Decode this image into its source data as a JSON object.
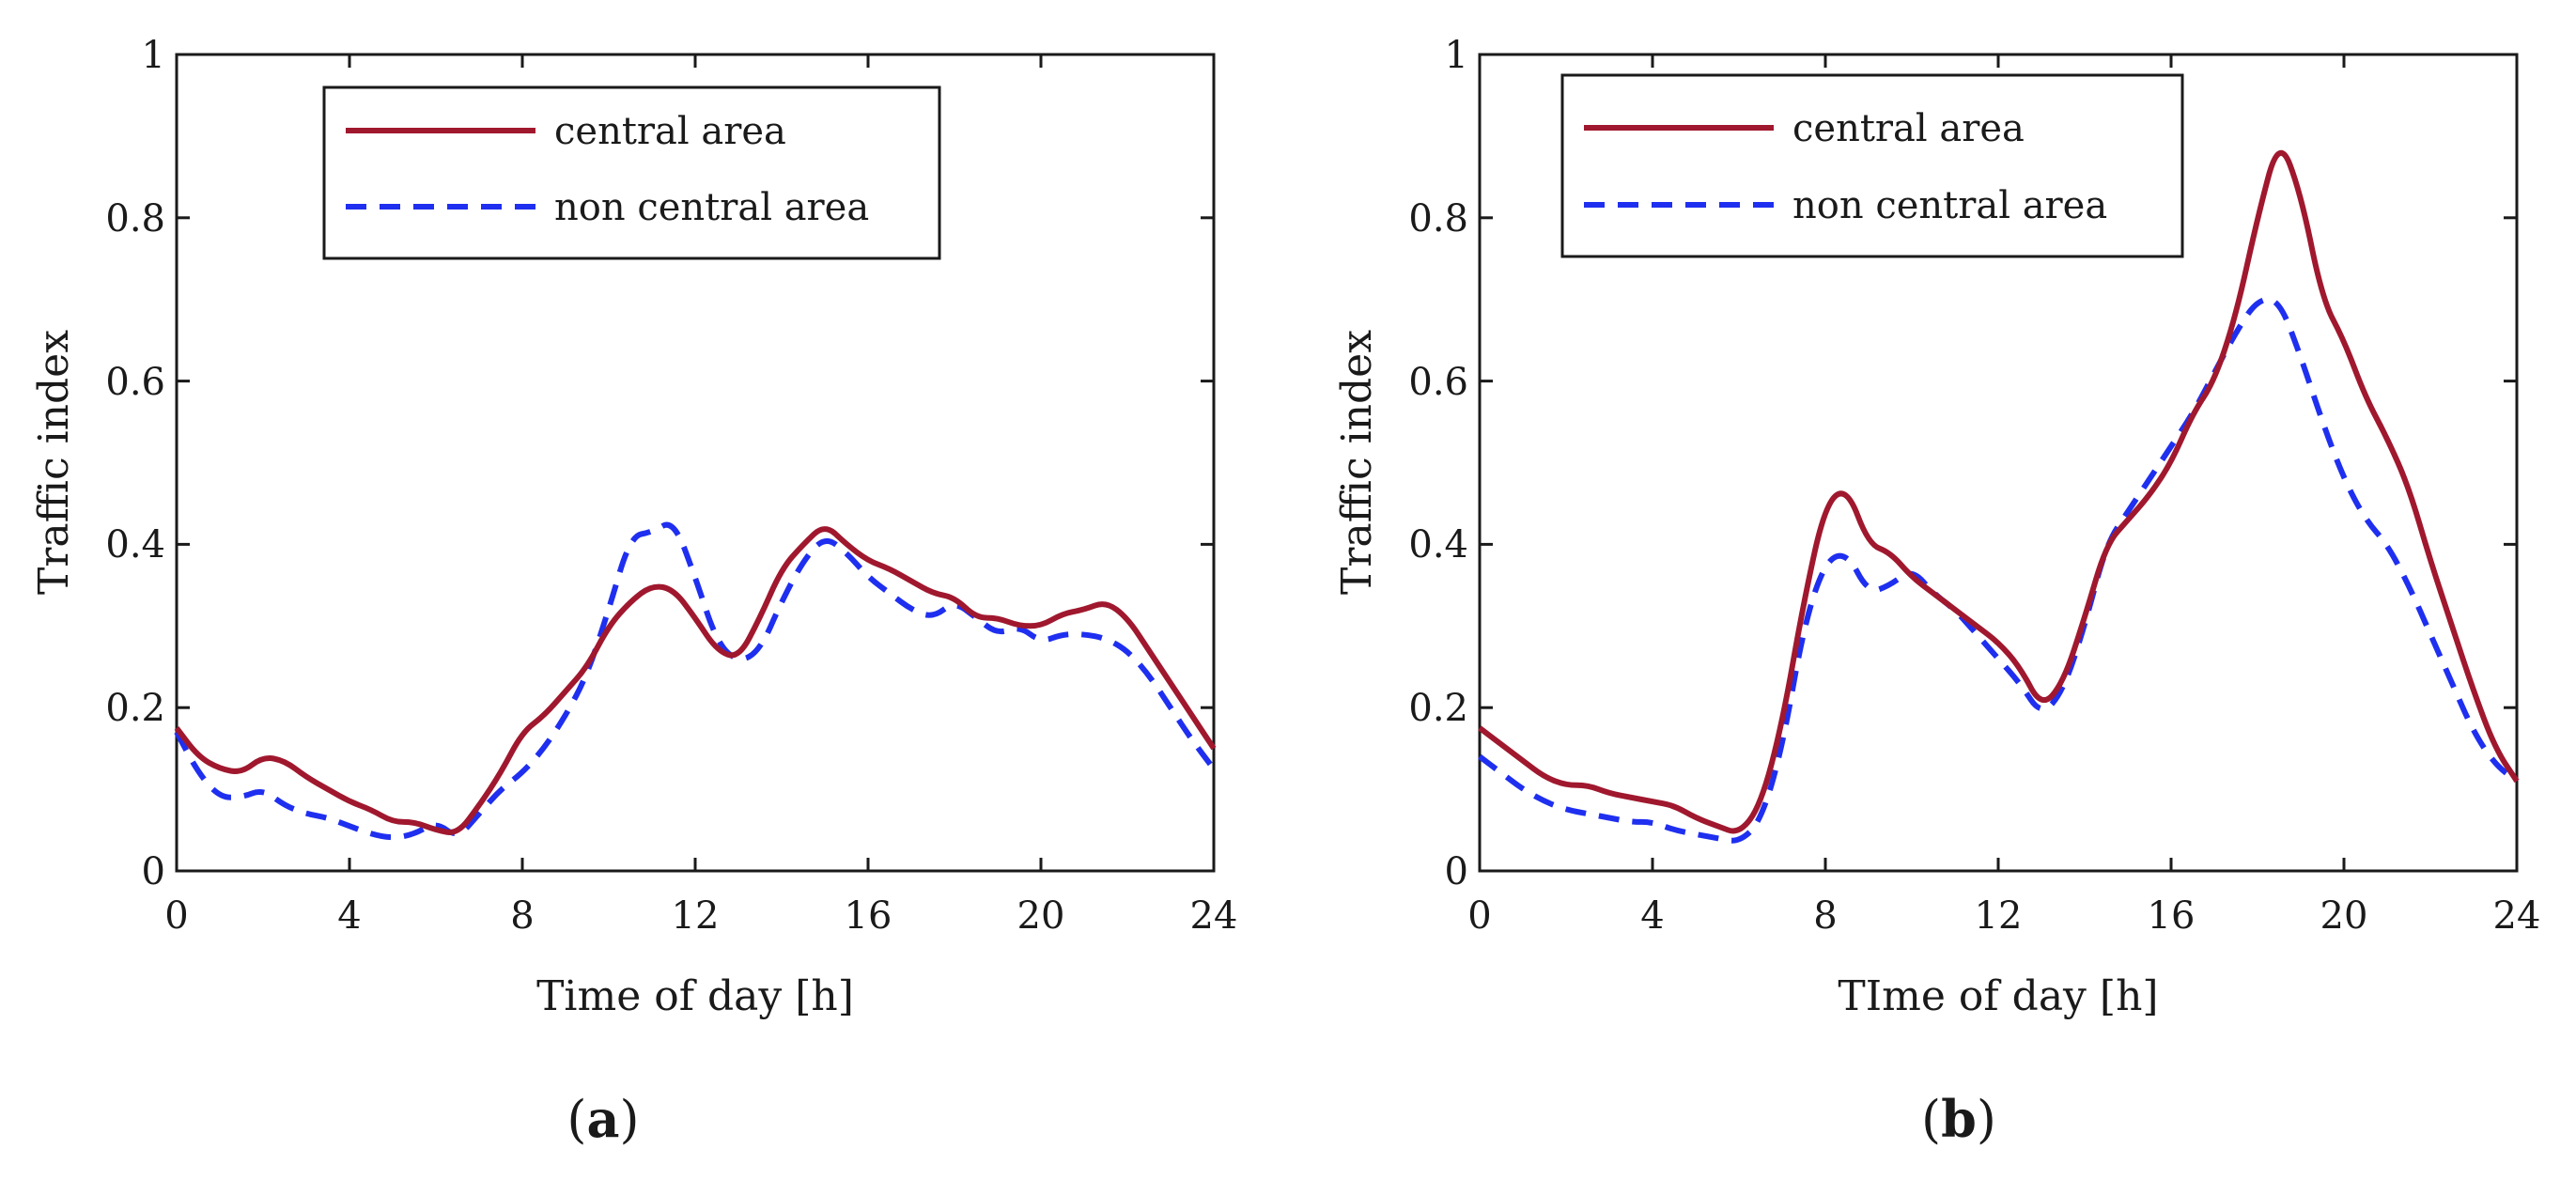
{
  "colors": {
    "central": "#a0182e",
    "non_central": "#1f2ff0",
    "axis": "#1a1a1a"
  },
  "chart_data": [
    {
      "type": "line",
      "panel_label": "a",
      "xlabel": "Time of day [h]",
      "ylabel": "Traffic index",
      "xlim": [
        0,
        24
      ],
      "ylim": [
        0,
        1
      ],
      "xticks": [
        "0",
        "4",
        "8",
        "12",
        "16",
        "20",
        "24"
      ],
      "yticks": [
        "0",
        "0.2",
        "0.4",
        "0.6",
        "0.8",
        "1"
      ],
      "legend_position": "top-center",
      "series": [
        {
          "name": "central area",
          "style": "solid",
          "x": [
            0,
            0.5,
            1,
            1.5,
            2,
            2.5,
            3,
            3.5,
            4,
            4.5,
            5,
            5.5,
            6,
            6.5,
            7,
            7.5,
            8,
            8.5,
            9,
            9.5,
            10,
            10.5,
            11,
            11.5,
            12,
            12.5,
            13,
            13.5,
            14,
            14.5,
            15,
            15.5,
            16,
            16.5,
            17,
            17.5,
            18,
            18.5,
            19,
            19.5,
            20,
            20.5,
            21,
            21.5,
            22,
            22.5,
            23,
            23.5,
            24
          ],
          "values": [
            0.175,
            0.14,
            0.125,
            0.12,
            0.14,
            0.135,
            0.115,
            0.1,
            0.085,
            0.075,
            0.06,
            0.06,
            0.05,
            0.045,
            0.08,
            0.12,
            0.17,
            0.19,
            0.22,
            0.25,
            0.3,
            0.33,
            0.35,
            0.345,
            0.31,
            0.27,
            0.26,
            0.31,
            0.37,
            0.4,
            0.425,
            0.4,
            0.38,
            0.37,
            0.355,
            0.34,
            0.335,
            0.31,
            0.31,
            0.3,
            0.3,
            0.315,
            0.32,
            0.33,
            0.31,
            0.27,
            0.23,
            0.19,
            0.15
          ]
        },
        {
          "name": "non central area",
          "style": "dashed",
          "x": [
            0,
            0.5,
            1,
            1.5,
            2,
            2.5,
            3,
            3.5,
            4,
            4.5,
            5,
            5.5,
            6,
            6.5,
            7,
            7.5,
            8,
            8.5,
            9,
            9.5,
            10,
            10.5,
            11,
            11.5,
            12,
            12.5,
            13,
            13.5,
            14,
            14.5,
            15,
            15.5,
            16,
            16.5,
            17,
            17.5,
            18,
            18.5,
            19,
            19.5,
            20,
            20.5,
            21,
            21.5,
            22,
            22.5,
            23,
            23.5,
            24
          ],
          "values": [
            0.17,
            0.12,
            0.09,
            0.09,
            0.1,
            0.08,
            0.07,
            0.065,
            0.055,
            0.045,
            0.04,
            0.045,
            0.06,
            0.04,
            0.07,
            0.1,
            0.12,
            0.15,
            0.19,
            0.24,
            0.32,
            0.41,
            0.415,
            0.43,
            0.36,
            0.28,
            0.255,
            0.27,
            0.33,
            0.38,
            0.41,
            0.39,
            0.36,
            0.34,
            0.32,
            0.31,
            0.33,
            0.31,
            0.29,
            0.3,
            0.28,
            0.29,
            0.29,
            0.285,
            0.27,
            0.24,
            0.2,
            0.16,
            0.125
          ]
        }
      ]
    },
    {
      "type": "line",
      "panel_label": "b",
      "xlabel": "TIme of day [h]",
      "ylabel": "Traffic index",
      "xlim": [
        0,
        24
      ],
      "ylim": [
        0,
        1
      ],
      "xticks": [
        "0",
        "4",
        "8",
        "12",
        "16",
        "20",
        "24"
      ],
      "yticks": [
        "0",
        "0.2",
        "0.4",
        "0.6",
        "0.8",
        "1"
      ],
      "legend_position": "top-left",
      "series": [
        {
          "name": "central area",
          "style": "solid",
          "x": [
            0,
            0.5,
            1,
            1.5,
            2,
            2.5,
            3,
            3.5,
            4,
            4.5,
            5,
            5.5,
            6,
            6.5,
            7,
            7.5,
            8,
            8.5,
            9,
            9.5,
            10,
            10.5,
            11,
            11.5,
            12,
            12.5,
            13,
            13.5,
            14,
            14.5,
            15,
            15.5,
            16,
            16.5,
            17,
            17.5,
            18,
            18.5,
            19,
            19.5,
            20,
            20.5,
            21,
            21.5,
            22,
            22.5,
            23,
            23.5,
            24
          ],
          "values": [
            0.175,
            0.155,
            0.135,
            0.115,
            0.105,
            0.105,
            0.095,
            0.09,
            0.085,
            0.08,
            0.065,
            0.055,
            0.045,
            0.08,
            0.18,
            0.33,
            0.45,
            0.47,
            0.4,
            0.39,
            0.36,
            0.34,
            0.32,
            0.3,
            0.28,
            0.25,
            0.2,
            0.23,
            0.31,
            0.4,
            0.43,
            0.46,
            0.5,
            0.56,
            0.6,
            0.68,
            0.8,
            0.9,
            0.83,
            0.7,
            0.65,
            0.58,
            0.53,
            0.47,
            0.38,
            0.3,
            0.22,
            0.15,
            0.11
          ]
        },
        {
          "name": "non central area",
          "style": "dashed",
          "x": [
            0,
            0.5,
            1,
            1.5,
            2,
            2.5,
            3,
            3.5,
            4,
            4.5,
            5,
            5.5,
            6,
            6.5,
            7,
            7.5,
            8,
            8.5,
            9,
            9.5,
            10,
            10.5,
            11,
            11.5,
            12,
            12.5,
            13,
            13.5,
            14,
            14.5,
            15,
            15.5,
            16,
            16.5,
            17,
            17.5,
            18,
            18.5,
            19,
            19.5,
            20,
            20.5,
            21,
            21.5,
            22,
            22.5,
            23,
            23.5,
            24
          ],
          "values": [
            0.14,
            0.12,
            0.1,
            0.085,
            0.075,
            0.07,
            0.065,
            0.06,
            0.06,
            0.05,
            0.045,
            0.04,
            0.035,
            0.06,
            0.15,
            0.3,
            0.38,
            0.39,
            0.34,
            0.35,
            0.37,
            0.34,
            0.32,
            0.29,
            0.26,
            0.23,
            0.19,
            0.22,
            0.3,
            0.4,
            0.44,
            0.48,
            0.52,
            0.56,
            0.61,
            0.66,
            0.7,
            0.7,
            0.63,
            0.55,
            0.48,
            0.43,
            0.4,
            0.35,
            0.29,
            0.23,
            0.17,
            0.13,
            0.11
          ]
        }
      ]
    }
  ]
}
